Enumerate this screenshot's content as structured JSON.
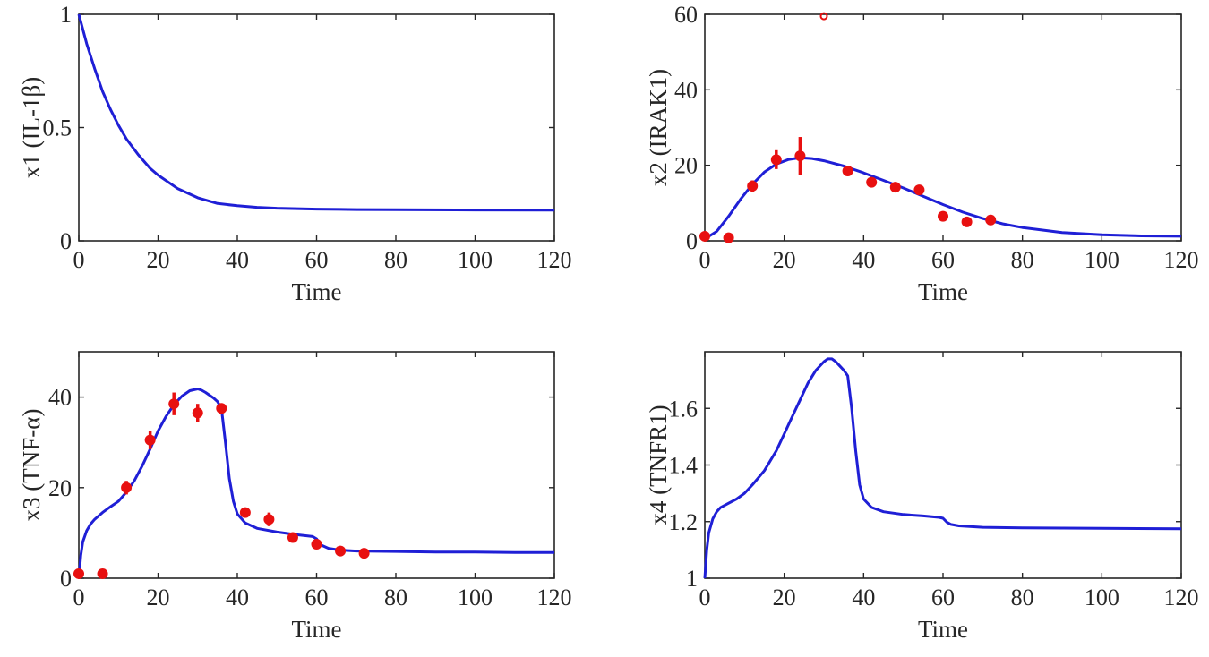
{
  "chart_data": [
    {
      "type": "line",
      "xlabel": "Time",
      "ylabel": "x1 (IL-1β)",
      "xlim": [
        0,
        120
      ],
      "ylim": [
        0,
        1
      ],
      "xticks": [
        0,
        20,
        40,
        60,
        80,
        100,
        120
      ],
      "yticks": [
        0,
        0.5,
        1
      ],
      "ytick_labels": [
        "0",
        "0.5",
        "1"
      ],
      "grid": false,
      "colors": {
        "model": "#1f1fd6",
        "data": "#e81010"
      },
      "series": [
        {
          "kind": "model",
          "x": [
            0,
            2,
            4,
            6,
            8,
            10,
            12,
            15,
            18,
            20,
            25,
            30,
            35,
            40,
            45,
            50,
            60,
            70,
            80,
            100,
            120
          ],
          "y": [
            1.0,
            0.87,
            0.76,
            0.66,
            0.58,
            0.51,
            0.45,
            0.38,
            0.32,
            0.29,
            0.23,
            0.19,
            0.165,
            0.155,
            0.148,
            0.144,
            0.14,
            0.138,
            0.137,
            0.136,
            0.135
          ]
        }
      ]
    },
    {
      "type": "line",
      "xlabel": "Time",
      "ylabel": "x2 (IRAK1)",
      "xlim": [
        0,
        120
      ],
      "ylim": [
        0,
        60
      ],
      "xticks": [
        0,
        20,
        40,
        60,
        80,
        100,
        120
      ],
      "yticks": [
        0,
        20,
        40,
        60
      ],
      "ytick_labels": [
        "0",
        "20",
        "40",
        "60"
      ],
      "grid": false,
      "colors": {
        "model": "#1f1fd6",
        "data": "#e81010"
      },
      "series": [
        {
          "kind": "model",
          "x": [
            0,
            3,
            6,
            9,
            12,
            15,
            18,
            21,
            24,
            27,
            30,
            35,
            40,
            45,
            50,
            55,
            60,
            65,
            70,
            75,
            80,
            90,
            100,
            110,
            120
          ],
          "y": [
            0.5,
            2.5,
            6.5,
            11,
            15,
            18.2,
            20.3,
            21.5,
            22.0,
            21.8,
            21.2,
            19.8,
            18.0,
            16.0,
            14.0,
            11.8,
            9.6,
            7.6,
            5.9,
            4.5,
            3.5,
            2.2,
            1.6,
            1.3,
            1.2
          ]
        },
        {
          "kind": "data",
          "x": [
            0,
            6,
            12,
            18,
            24,
            30,
            36,
            42,
            48,
            54,
            60,
            66,
            72
          ],
          "y": [
            1.2,
            0.8,
            14.5,
            21.5,
            22.5,
            59.5,
            18.5,
            15.5,
            14.2,
            13.5,
            6.5,
            5.0,
            5.5
          ],
          "err": [
            0.4,
            1.2,
            1.5,
            2.5,
            5.0,
            0,
            1.2,
            0.8,
            0.6,
            0.8,
            0.6,
            0.5,
            0.5
          ]
        }
      ]
    },
    {
      "type": "line",
      "xlabel": "Time",
      "ylabel": "x3 (TNF-α)",
      "xlim": [
        0,
        120
      ],
      "ylim": [
        0,
        50
      ],
      "xticks": [
        0,
        20,
        40,
        60,
        80,
        100,
        120
      ],
      "yticks": [
        0,
        20,
        40
      ],
      "ytick_labels": [
        "0",
        "20",
        "40"
      ],
      "grid": false,
      "colors": {
        "model": "#1f1fd6",
        "data": "#e81010"
      },
      "series": [
        {
          "kind": "model",
          "x": [
            0,
            0.5,
            1,
            2,
            3,
            4,
            6,
            8,
            10,
            12,
            14,
            16,
            18,
            20,
            22,
            24,
            26,
            28,
            30,
            31,
            32,
            34,
            35,
            36,
            37,
            38,
            39,
            40,
            42,
            45,
            50,
            55,
            59,
            60,
            61,
            63,
            66,
            70,
            80,
            90,
            100,
            110,
            120
          ],
          "y": [
            0,
            5,
            8,
            10.5,
            12,
            13,
            14.5,
            15.8,
            17,
            19,
            21.5,
            24.8,
            28.5,
            32.5,
            35.7,
            38.3,
            40.2,
            41.4,
            41.8,
            41.5,
            41.0,
            39.8,
            39.0,
            37.5,
            30,
            22,
            17,
            14.2,
            12.2,
            11,
            10.2,
            9.6,
            9.2,
            8.7,
            7.4,
            6.6,
            6.2,
            6.0,
            5.9,
            5.8,
            5.8,
            5.7,
            5.7
          ]
        },
        {
          "kind": "data",
          "x": [
            0,
            6,
            12,
            18,
            24,
            30,
            36,
            42,
            48,
            54,
            60,
            66,
            72
          ],
          "y": [
            1.0,
            1.0,
            20.0,
            30.5,
            38.5,
            36.5,
            37.5,
            14.5,
            13.0,
            9.0,
            7.5,
            6.0,
            5.5
          ],
          "err": [
            0.4,
            0.4,
            1.5,
            2.0,
            2.5,
            2.0,
            1.0,
            1.0,
            1.5,
            0.6,
            0.5,
            0.5,
            0.5
          ]
        }
      ]
    },
    {
      "type": "line",
      "xlabel": "Time",
      "ylabel": "x4 (TNFR1)",
      "xlim": [
        0,
        120
      ],
      "ylim": [
        1,
        1.8
      ],
      "xticks": [
        0,
        20,
        40,
        60,
        80,
        100,
        120
      ],
      "yticks": [
        1,
        1.2,
        1.4,
        1.6
      ],
      "ytick_labels": [
        "1",
        "1.2",
        "1.4",
        "1.6"
      ],
      "grid": false,
      "colors": {
        "model": "#1f1fd6",
        "data": "#e81010"
      },
      "series": [
        {
          "kind": "model",
          "x": [
            0,
            0.5,
            1,
            2,
            3,
            4,
            6,
            8,
            10,
            12,
            15,
            18,
            20,
            22,
            24,
            26,
            28,
            30,
            31,
            32,
            33,
            34,
            35,
            36,
            37,
            38,
            39,
            40,
            42,
            45,
            50,
            55,
            59,
            60,
            61,
            62,
            64,
            70,
            80,
            100,
            120
          ],
          "y": [
            1.0,
            1.1,
            1.16,
            1.21,
            1.235,
            1.25,
            1.265,
            1.28,
            1.3,
            1.33,
            1.38,
            1.45,
            1.51,
            1.57,
            1.63,
            1.69,
            1.735,
            1.765,
            1.775,
            1.775,
            1.765,
            1.75,
            1.735,
            1.715,
            1.6,
            1.45,
            1.33,
            1.28,
            1.25,
            1.235,
            1.225,
            1.22,
            1.215,
            1.212,
            1.198,
            1.19,
            1.185,
            1.18,
            1.178,
            1.176,
            1.175
          ]
        }
      ]
    }
  ]
}
